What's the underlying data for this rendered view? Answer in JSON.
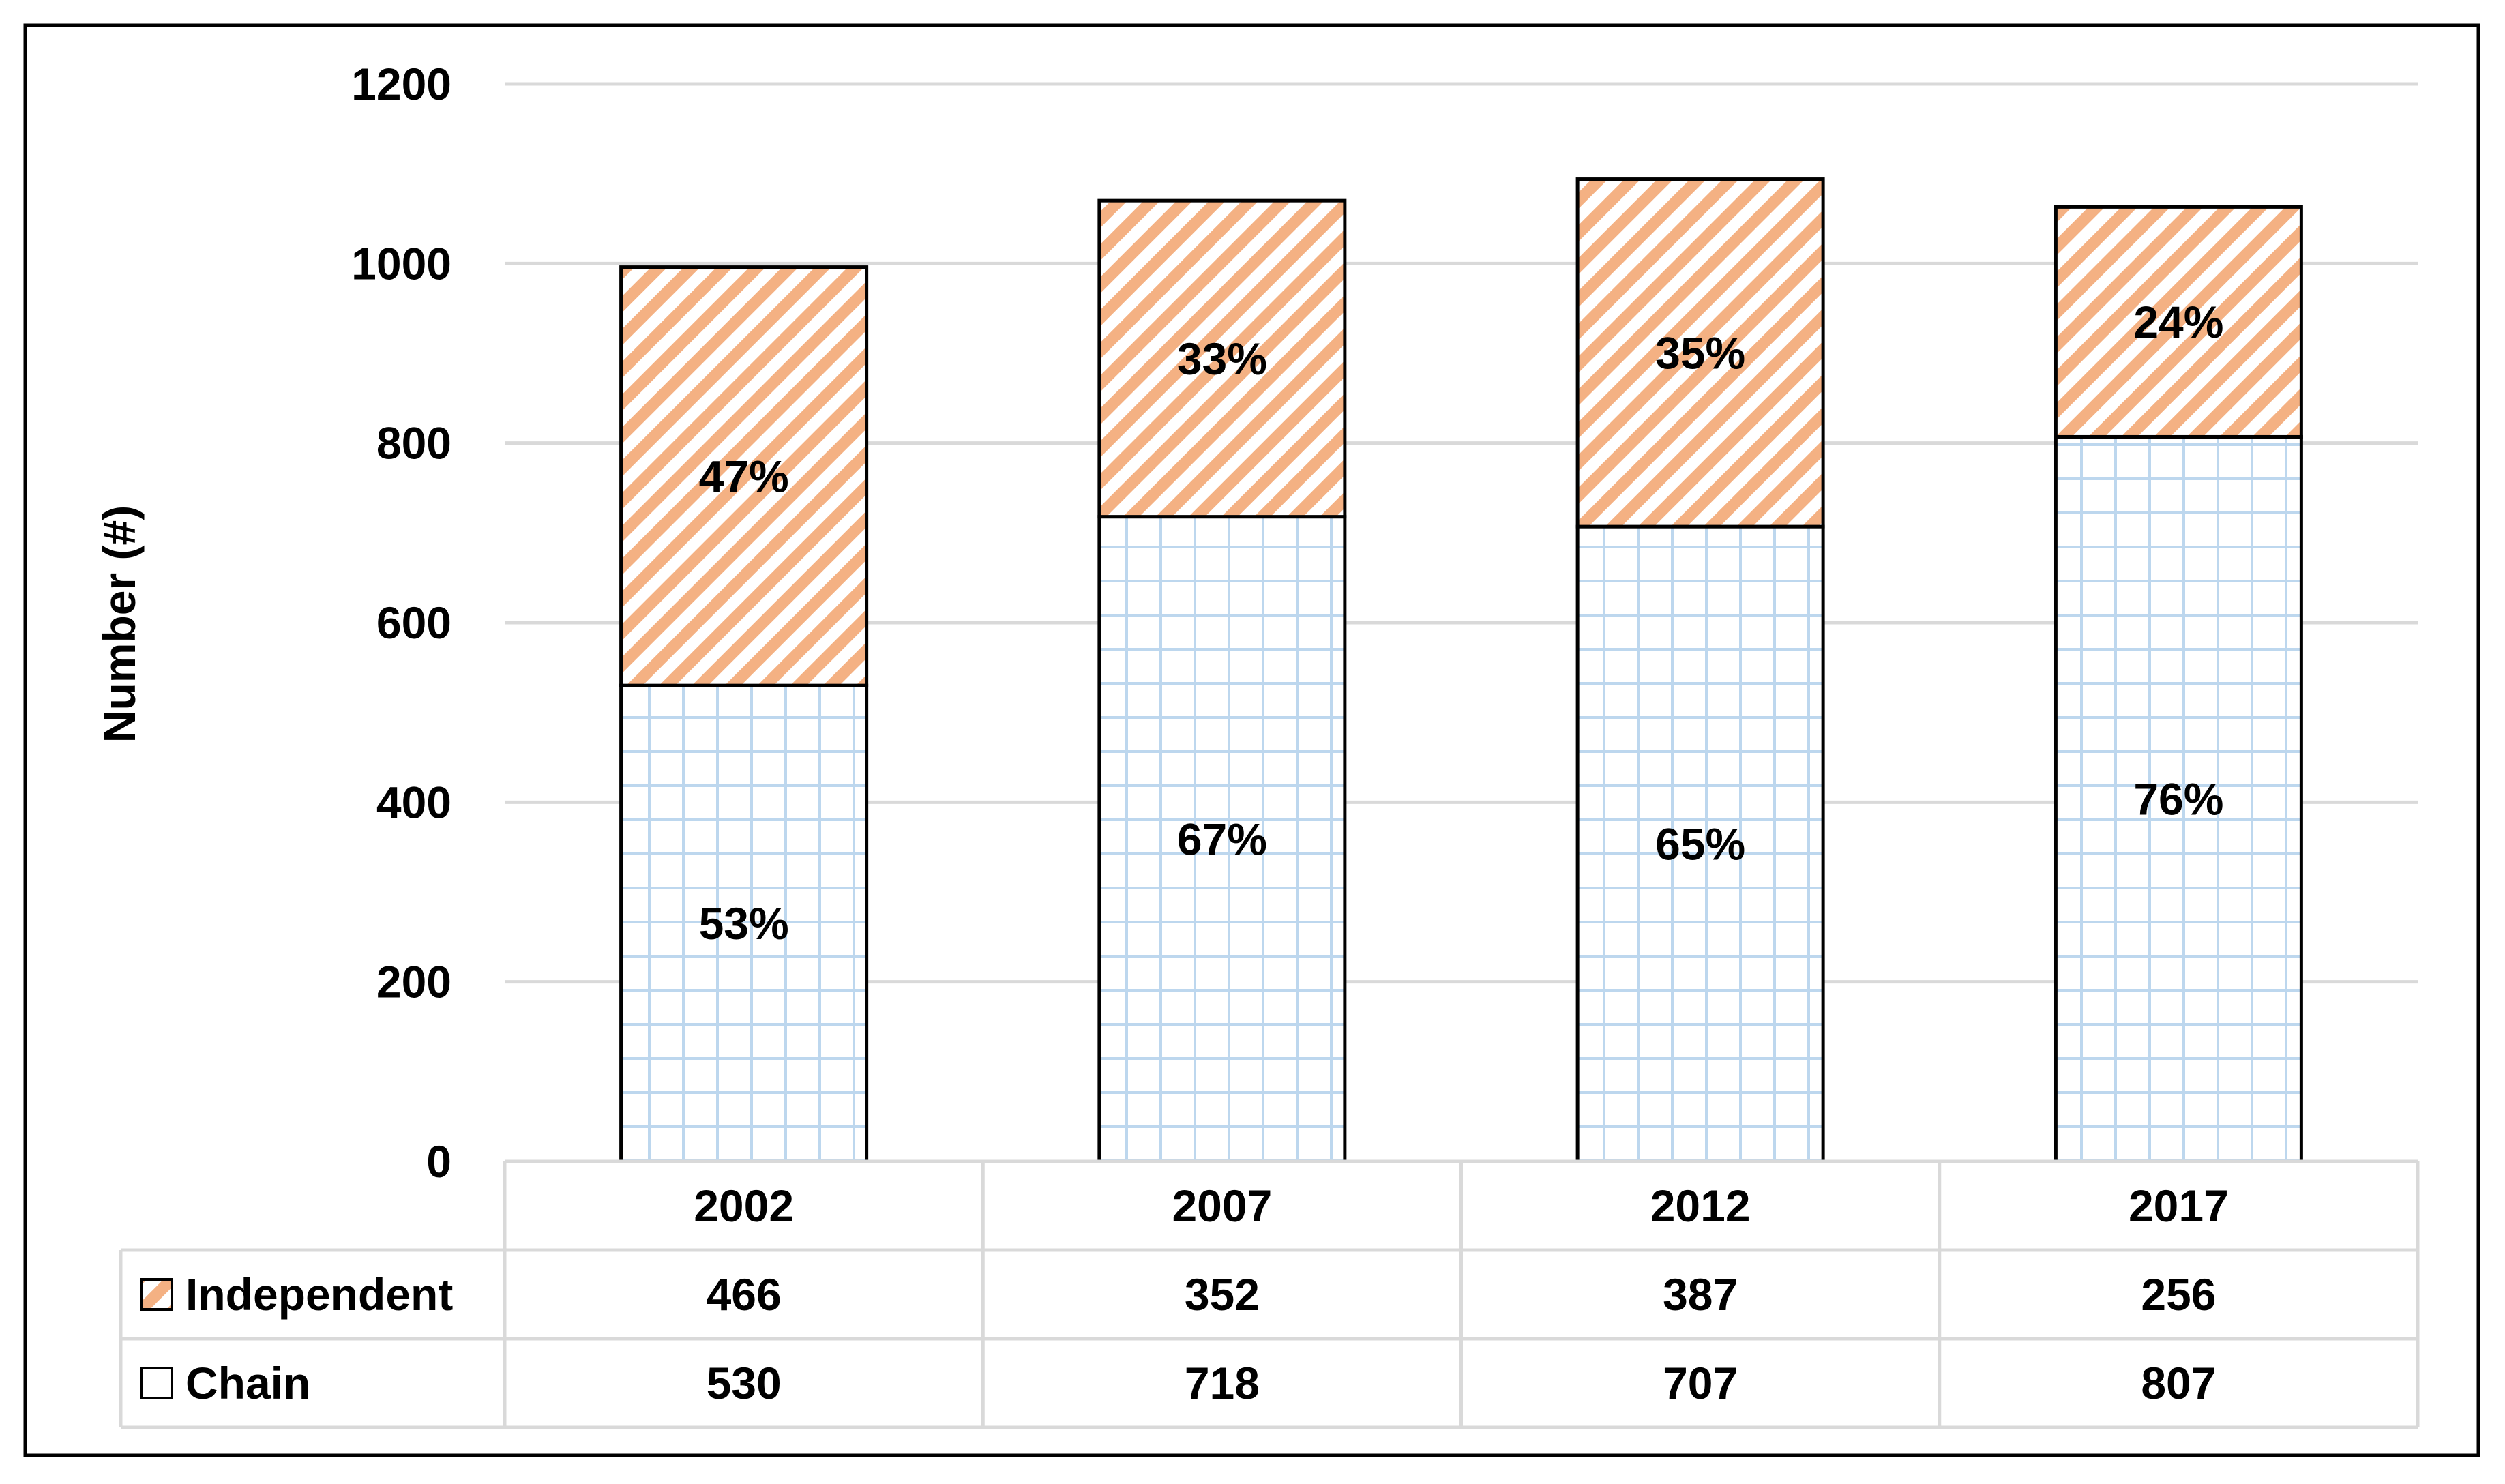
{
  "chart_data": {
    "type": "bar",
    "stacked": true,
    "categories": [
      "2002",
      "2007",
      "2012",
      "2017"
    ],
    "series": [
      {
        "name": "Chain",
        "values": [
          530,
          718,
          707,
          807
        ],
        "percent_labels": [
          "53%",
          "67%",
          "65%",
          "76%"
        ],
        "color": "#bdd7ee",
        "pattern": "grid"
      },
      {
        "name": "Independent",
        "values": [
          466,
          352,
          387,
          256
        ],
        "percent_labels": [
          "47%",
          "33%",
          "35%",
          "24%"
        ],
        "color": "#f4b183",
        "pattern": "diagonal-stripes"
      }
    ],
    "ylabel": "Number (#)",
    "ylim": [
      0,
      1200
    ],
    "yticks": [
      "0",
      "200",
      "400",
      "600",
      "800",
      "1000",
      "1200"
    ],
    "grid": true,
    "data_table": {
      "rows": [
        {
          "label": "Independent",
          "values": [
            "466",
            "352",
            "387",
            "256"
          ]
        },
        {
          "label": "Chain",
          "values": [
            "530",
            "718",
            "707",
            "807"
          ]
        }
      ]
    }
  },
  "colors": {
    "border": "#000000",
    "gridline": "#d9d9d9",
    "table_line": "#d9d9d9",
    "chain": "#bdd7ee",
    "independent": "#f4b183"
  }
}
